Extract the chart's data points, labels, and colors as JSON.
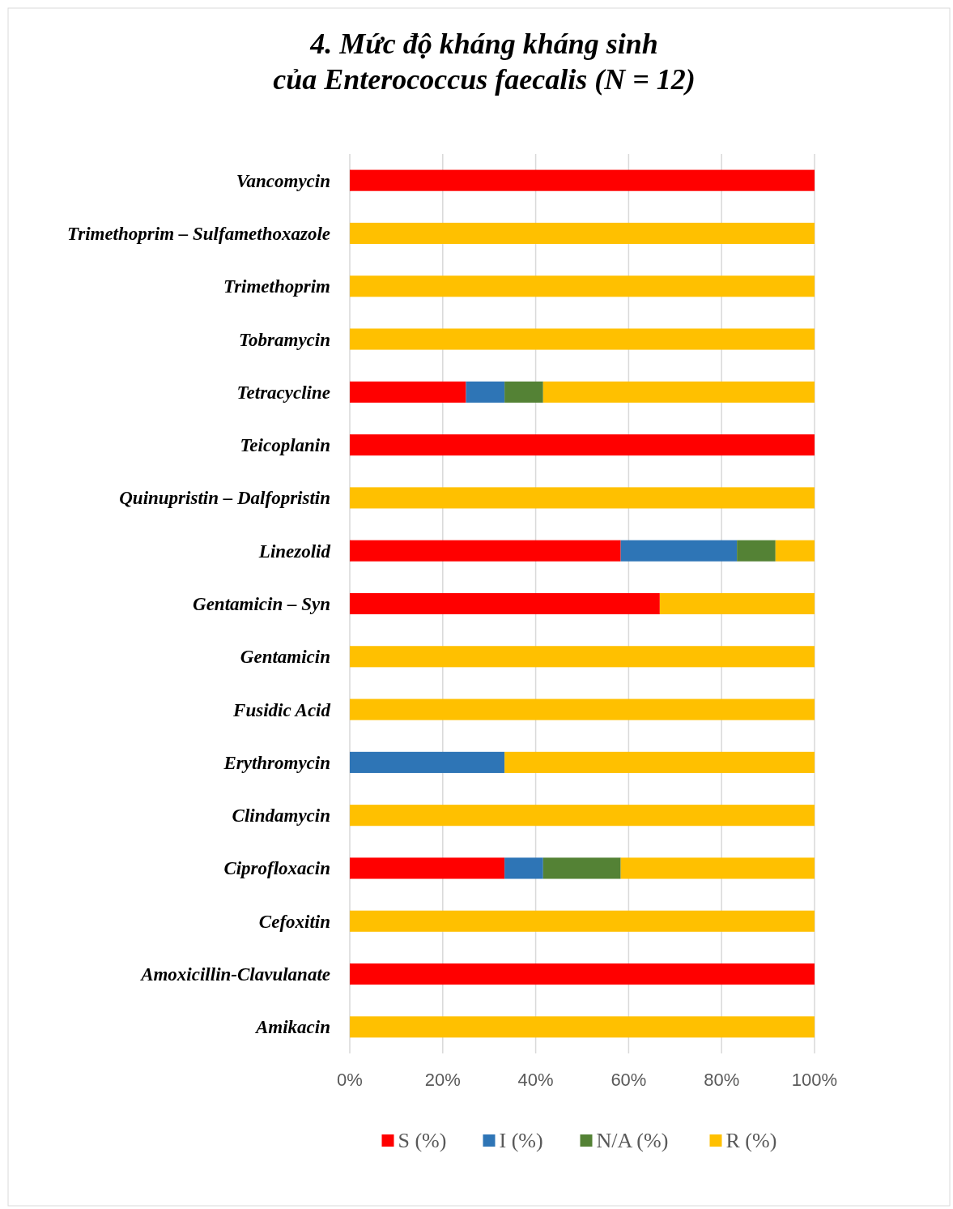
{
  "chart_data": {
    "type": "bar",
    "orientation": "horizontal",
    "stacked": true,
    "title": "4. Mức độ kháng kháng sinh\ncủa Enterococcus faecalis (N = 12)",
    "categories": [
      "Vancomycin",
      "Trimethoprim – Sulfamethoxazole",
      "Trimethoprim",
      "Tobramycin",
      "Tetracycline",
      "Teicoplanin",
      "Quinupristin – Dalfopristin",
      "Linezolid",
      "Gentamicin – Syn",
      "Gentamicin",
      "Fusidic Acid",
      "Erythromycin",
      "Clindamycin",
      "Ciprofloxacin",
      "Cefoxitin",
      "Amoxicillin-Clavulanate",
      "Amikacin"
    ],
    "series": [
      {
        "name": "S (%)",
        "color": "#ff0000",
        "values": [
          100,
          0,
          0,
          0,
          25,
          100,
          0,
          58.3,
          66.7,
          0,
          0,
          0,
          0,
          33.3,
          0,
          100,
          0
        ]
      },
      {
        "name": "I (%)",
        "color": "#2e75b6",
        "values": [
          0,
          0,
          0,
          0,
          8.3,
          0,
          0,
          25,
          0,
          0,
          0,
          33.3,
          0,
          8.3,
          0,
          0,
          0
        ]
      },
      {
        "name": "N/A (%)",
        "color": "#548235",
        "values": [
          0,
          0,
          0,
          0,
          8.3,
          0,
          0,
          8.3,
          0,
          0,
          0,
          0,
          0,
          16.7,
          0,
          0,
          0
        ]
      },
      {
        "name": "R (%)",
        "color": "#ffc000",
        "values": [
          0,
          100,
          100,
          100,
          58.4,
          0,
          100,
          8.4,
          33.3,
          100,
          100,
          66.7,
          100,
          41.7,
          100,
          0,
          100
        ]
      }
    ],
    "xlim": [
      0,
      100
    ],
    "xticks": [
      {
        "value": 0,
        "label": "0%"
      },
      {
        "value": 20,
        "label": "20%"
      },
      {
        "value": 40,
        "label": "40%"
      },
      {
        "value": 60,
        "label": "60%"
      },
      {
        "value": 80,
        "label": "80%"
      },
      {
        "value": 100,
        "label": "100%"
      }
    ],
    "grid": "x",
    "legend": "bottom"
  }
}
